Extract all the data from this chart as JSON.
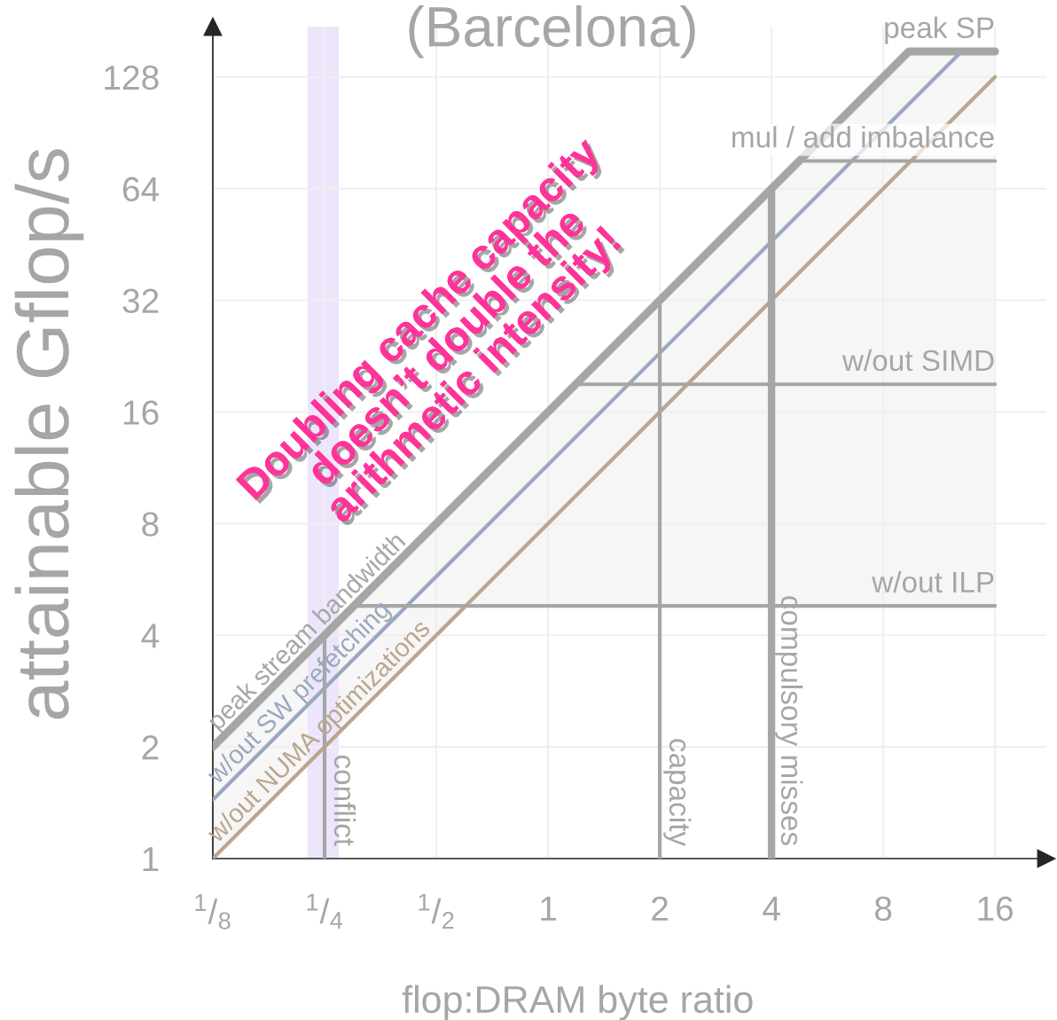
{
  "chart_data": {
    "type": "line",
    "title": "(Barcelona)",
    "xlabel": "flop:DRAM byte ratio",
    "ylabel": "attainable Gflop/s",
    "log": "xy",
    "xlim": [
      0.125,
      22
    ],
    "ylim": [
      1,
      175
    ],
    "xticks": [
      {
        "value": 0.125,
        "label": "$^{1}$/$_{8}$"
      },
      {
        "value": 0.25,
        "label": "$^{1}$/$_{4}$"
      },
      {
        "value": 0.5,
        "label": "$^{1}$/$_{2}$"
      },
      1,
      2,
      4,
      8,
      16
    ],
    "yticks": [
      1,
      2,
      4,
      8,
      16,
      32,
      64,
      128
    ],
    "grid": true,
    "series": [
      {
        "name": "peak stream bandwidth",
        "color": "#a6a6a6",
        "x": [
          0.125,
          0.6,
          9.375,
          16
        ],
        "values": [
          2,
          9.6,
          150,
          150
        ],
        "lower": [
          1,
          4.8,
          4.8,
          4.8
        ],
        "upper": [
          2,
          9.6,
          150,
          150
        ]
      },
      {
        "name": "w/out SW prefetching",
        "color": "#98a9be",
        "x": [
          0.125,
          13
        ],
        "values": [
          1.44,
          150
        ]
      },
      {
        "name": "w/out NUMA optimizations",
        "color": "#bba58e",
        "x": [
          0.125,
          16
        ],
        "values": [
          1,
          128
        ]
      },
      {
        "name": "mul / add imbalance",
        "color": "#a6a6a6",
        "x": [
          4.75,
          16
        ],
        "values": [
          76,
          76
        ]
      },
      {
        "name": "w/out SIMD",
        "color": "#a6a6a6",
        "x": [
          1.1875,
          16
        ],
        "values": [
          19,
          19
        ]
      },
      {
        "name": "w/out ILP",
        "color": "#a6a6a6",
        "x": [
          0.3,
          16
        ],
        "values": [
          4.8,
          4.8
        ]
      },
      {
        "name": "conflict",
        "color": "#a6a6a6",
        "x": [
          0.25,
          0.25
        ],
        "values": [
          1,
          4
        ]
      },
      {
        "name": "capacity",
        "color": "#a6a6a6",
        "x": [
          2,
          2
        ],
        "values": [
          1,
          32
        ]
      },
      {
        "name": "compulsory misses",
        "color": "#a6a6a6",
        "x": [
          4,
          4
        ],
        "values": [
          1,
          64
        ]
      }
    ],
    "bands": [
      {
        "axis": "x",
        "from": 0.225,
        "to": 0.273,
        "color": "#ece5fb"
      }
    ],
    "annotations": [
      {
        "text": "peak SP",
        "x": 16,
        "y": 150
      },
      "Doubling cache capacity\ndoesn’t double the\narithmetic intensity!"
    ]
  }
}
